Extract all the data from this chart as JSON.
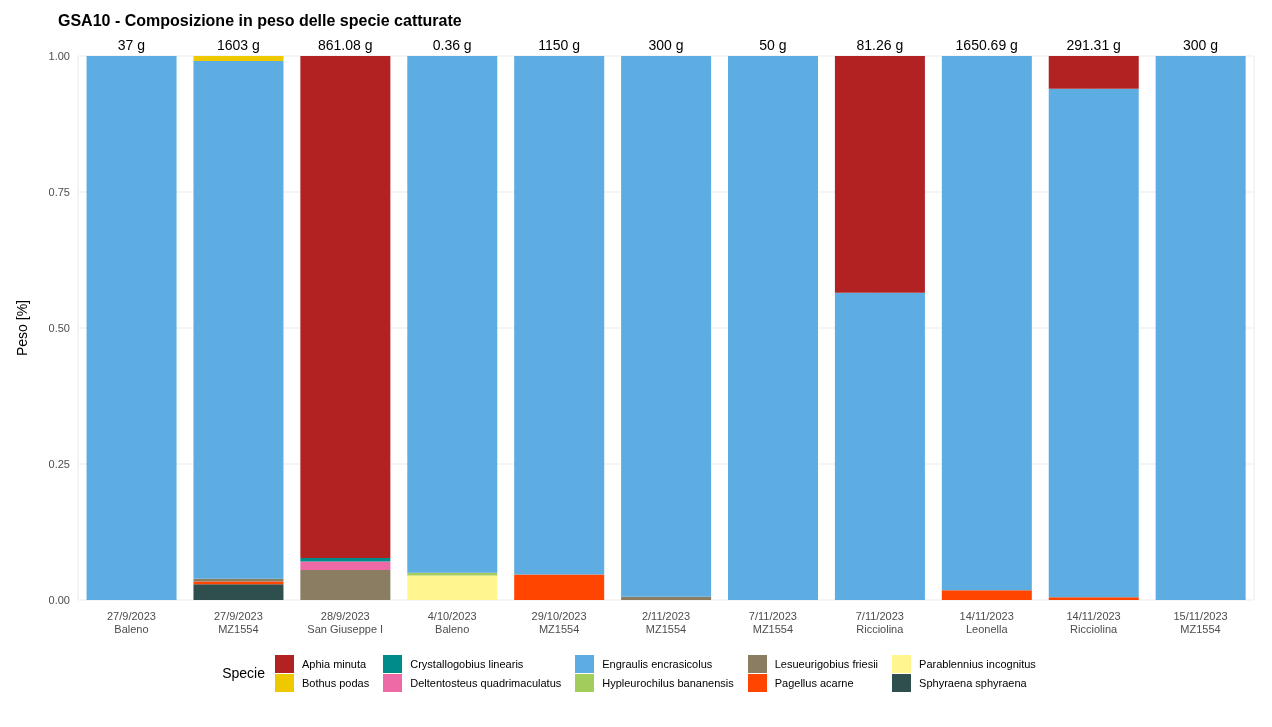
{
  "chart_data": {
    "type": "bar",
    "title": "GSA10 - Composizione in peso delle specie catturate",
    "ylabel": "Peso [%]",
    "legend_title": "Specie",
    "stacked": true,
    "grid": true,
    "legend": "bottom",
    "categories": [
      "27/9/2023\nBaleno",
      "27/9/2023\nMZ1554",
      "28/9/2023\nSan Giuseppe I",
      "4/10/2023\nBaleno",
      "29/10/2023\nMZ1554",
      "2/11/2023\nMZ1554",
      "7/11/2023\nMZ1554",
      "7/11/2023\nRicciolina",
      "14/11/2023\nLeonella",
      "14/11/2023\nRicciolina",
      "15/11/2023\nMZ1554"
    ],
    "ylim": [
      0,
      1
    ],
    "yticks": [
      {
        "value": 0,
        "label": "0.00"
      },
      {
        "value": 0.25,
        "label": "0.25"
      },
      {
        "value": 0.5,
        "label": "0.50"
      },
      {
        "value": 0.75,
        "label": "0.75"
      },
      {
        "value": 1,
        "label": "1.00"
      }
    ],
    "annotations": [
      {
        "text": "37 g",
        "x": "27/9/2023\nBaleno",
        "y": 1
      },
      {
        "text": "1603 g",
        "x": "27/9/2023\nMZ1554",
        "y": 1
      },
      {
        "text": "861.08 g",
        "x": "28/9/2023\nSan Giuseppe I",
        "y": 1
      },
      {
        "text": "0.36 g",
        "x": "4/10/2023\nBaleno",
        "y": 1
      },
      {
        "text": "1150 g",
        "x": "29/10/2023\nMZ1554",
        "y": 1
      },
      {
        "text": "300 g",
        "x": "2/11/2023\nMZ1554",
        "y": 1
      },
      {
        "text": "50 g",
        "x": "7/11/2023\nMZ1554",
        "y": 1
      },
      {
        "text": "81.26 g",
        "x": "7/11/2023\nRicciolina",
        "y": 1
      },
      {
        "text": "1650.69 g",
        "x": "14/11/2023\nLeonella",
        "y": 1
      },
      {
        "text": "291.31 g",
        "x": "14/11/2023\nRicciolina",
        "y": 1
      },
      {
        "text": "300 g",
        "x": "15/11/2023\nMZ1554",
        "y": 1
      }
    ],
    "series": [
      {
        "name": "Sphyraena sphyraena",
        "color": "#2f4f4f",
        "values": [
          0,
          0.029,
          0,
          0,
          0,
          0,
          0,
          0,
          0,
          0,
          0
        ]
      },
      {
        "name": "Parablennius incognitus",
        "color": "#fff68f",
        "values": [
          0,
          0,
          0,
          0.045,
          0,
          0,
          0,
          0,
          0,
          0,
          0
        ]
      },
      {
        "name": "Pagellus acarne",
        "color": "#ff4500",
        "values": [
          0,
          0.005,
          0,
          0,
          0.047,
          0,
          0,
          0,
          0.018,
          0.005,
          0
        ]
      },
      {
        "name": "Lesueurigobius friesii",
        "color": "#8b7d62",
        "values": [
          0,
          0.005,
          0.055,
          0,
          0,
          0.006,
          0,
          0,
          0,
          0,
          0
        ]
      },
      {
        "name": "Hypleurochilus bananensis",
        "color": "#a2cd5a",
        "values": [
          0,
          0,
          0,
          0.005,
          0,
          0,
          0,
          0,
          0,
          0,
          0
        ]
      },
      {
        "name": "Engraulis encrasicolus",
        "color": "#5dade2",
        "values": [
          1,
          0.952,
          0,
          0.95,
          0.953,
          0.994,
          1,
          0.565,
          0.982,
          0.935,
          1
        ]
      },
      {
        "name": "Deltentosteus quadrimaculatus",
        "color": "#ee6aa7",
        "values": [
          0,
          0,
          0.016,
          0,
          0,
          0,
          0,
          0,
          0,
          0,
          0
        ]
      },
      {
        "name": "Crystallogobius linearis",
        "color": "#008b8b",
        "values": [
          0,
          0,
          0.006,
          0,
          0,
          0,
          0,
          0,
          0,
          0,
          0
        ]
      },
      {
        "name": "Bothus podas",
        "color": "#eec900",
        "values": [
          0,
          0.009,
          0,
          0,
          0,
          0,
          0,
          0,
          0,
          0,
          0
        ]
      },
      {
        "name": "Aphia minuta",
        "color": "#b22222",
        "values": [
          0,
          0,
          0.923,
          0,
          0,
          0,
          0,
          0.435,
          0,
          0.06,
          0
        ]
      }
    ]
  }
}
